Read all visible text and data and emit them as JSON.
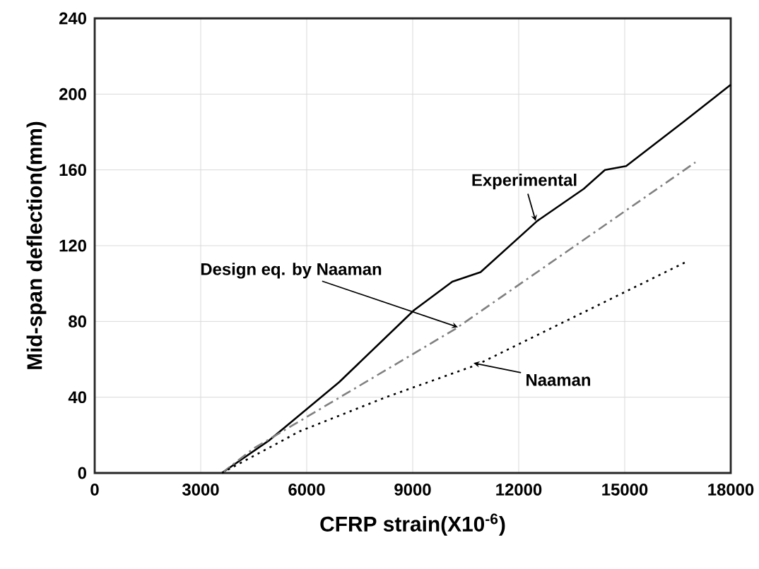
{
  "chart_data": {
    "type": "line",
    "xlabel": "CFRP strain(X10$^{-6}$)",
    "ylabel": "Mid-span deflection(mm)",
    "xlim": [
      0,
      18000
    ],
    "ylim": [
      0,
      240
    ],
    "xticks": [
      0,
      3000,
      6000,
      9000,
      12000,
      15000,
      18000
    ],
    "yticks": [
      0,
      40,
      80,
      120,
      160,
      200,
      240
    ],
    "grid": true,
    "marker": "none",
    "series": [
      {
        "color": "#000000",
        "line_style": "solid",
        "x": [
          3600,
          4920,
          6920,
          9040,
          10120,
          10920,
          12520,
          13840,
          14440,
          15040,
          16640,
          18000
        ],
        "values": [
          0,
          17,
          48,
          86,
          101,
          106,
          133,
          150,
          160,
          162,
          185,
          205
        ]
      },
      {
        "color": "#808080",
        "line_style": "dashed",
        "x": [
          3600,
          4500,
          10200,
          17000
        ],
        "values": [
          0,
          13,
          76,
          164
        ]
      },
      {
        "color": "#000000",
        "line_style": "dotted",
        "x": [
          3600,
          5800,
          8240,
          10800,
          16800
        ],
        "values": [
          0,
          22,
          40,
          57,
          112
        ]
      }
    ],
    "annotations": [
      {
        "text": "Experimental",
        "x": 12480,
        "y": 133
      },
      {
        "text": "Design eq. by Naaman",
        "x": 10280,
        "y": 77
      },
      {
        "text": "Naaman",
        "x": 10720,
        "y": 58
      }
    ]
  }
}
